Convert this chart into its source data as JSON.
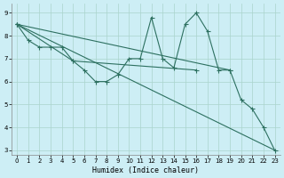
{
  "xlabel": "Humidex (Indice chaleur)",
  "bg_color": "#cdeef5",
  "grid_color": "#aad4cc",
  "line_color": "#2d7060",
  "xlim": [
    -0.5,
    23.5
  ],
  "ylim": [
    2.8,
    9.4
  ],
  "xtick_labels": [
    "0",
    "1",
    "2",
    "3",
    "4",
    "5",
    "6",
    "7",
    "8",
    "9",
    "10",
    "11",
    "12",
    "13",
    "14",
    "15",
    "16",
    "17",
    "18",
    "19",
    "20",
    "21",
    "22",
    "23"
  ],
  "xtick_vals": [
    0,
    1,
    2,
    3,
    4,
    5,
    6,
    7,
    8,
    9,
    10,
    11,
    12,
    13,
    14,
    15,
    16,
    17,
    18,
    19,
    20,
    21,
    22,
    23
  ],
  "ytick_vals": [
    3,
    4,
    5,
    6,
    7,
    8,
    9
  ],
  "line_zigzag": [
    [
      0,
      8.5
    ],
    [
      1,
      7.8
    ],
    [
      2,
      7.5
    ],
    [
      3,
      7.5
    ],
    [
      4,
      7.5
    ],
    [
      5,
      6.9
    ],
    [
      6,
      6.5
    ],
    [
      7,
      6.0
    ],
    [
      8,
      6.0
    ],
    [
      9,
      6.3
    ],
    [
      10,
      7.0
    ],
    [
      11,
      7.0
    ],
    [
      12,
      8.8
    ],
    [
      13,
      7.0
    ],
    [
      14,
      6.6
    ],
    [
      15,
      8.5
    ],
    [
      16,
      9.0
    ],
    [
      17,
      8.2
    ],
    [
      18,
      6.5
    ],
    [
      19,
      6.5
    ],
    [
      20,
      5.2
    ],
    [
      21,
      4.8
    ],
    [
      22,
      4.0
    ],
    [
      23,
      3.0
    ]
  ],
  "line_diagonal_long": [
    [
      0,
      8.5
    ],
    [
      23,
      3.0
    ]
  ],
  "line_diagonal_flat": [
    [
      0,
      8.5
    ],
    [
      19,
      6.5
    ]
  ],
  "line_diagonal_mid": [
    [
      0,
      8.5
    ],
    [
      5,
      6.9
    ],
    [
      16,
      6.5
    ]
  ]
}
